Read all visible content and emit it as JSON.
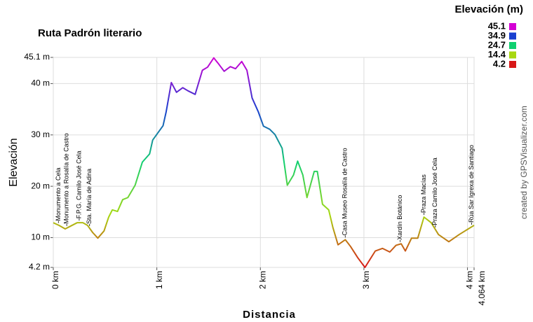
{
  "chart_data": {
    "type": "line",
    "title": "Ruta Padrón literario",
    "x_label": "Distancia",
    "y_label": "Elevación",
    "credit": "created by GPSVisualizer.com",
    "xlim": [
      0,
      4.064
    ],
    "ylim": [
      4.2,
      45.1
    ],
    "xticks": [
      {
        "value": 0,
        "label": "0 km"
      },
      {
        "value": 1,
        "label": "1 km"
      },
      {
        "value": 2,
        "label": "2 km"
      },
      {
        "value": 3,
        "label": "3 km"
      },
      {
        "value": 4,
        "label": "4 km"
      },
      {
        "value": 4.064,
        "label": "4.064 km"
      }
    ],
    "yticks": [
      {
        "value": 4.2,
        "label": "4.2 m"
      },
      {
        "value": 10,
        "label": "10 m"
      },
      {
        "value": 20,
        "label": "20 m"
      },
      {
        "value": 30,
        "label": "30 m"
      },
      {
        "value": 40,
        "label": "40 m"
      },
      {
        "value": 45.1,
        "label": "45.1 m"
      }
    ],
    "grid": true,
    "legend": {
      "title": "Elevación (m)",
      "position": "top-right",
      "entries": [
        {
          "value": 45.1,
          "color": "#d400d4"
        },
        {
          "value": 34.9,
          "color": "#1a3fd0"
        },
        {
          "value": 24.7,
          "color": "#10d070"
        },
        {
          "value": 14.4,
          "color": "#a8d810"
        },
        {
          "value": 4.2,
          "color": "#d81818"
        }
      ]
    },
    "x": [
      0,
      0.054,
      0.115,
      0.163,
      0.23,
      0.285,
      0.33,
      0.38,
      0.43,
      0.49,
      0.535,
      0.57,
      0.62,
      0.67,
      0.72,
      0.79,
      0.86,
      0.93,
      0.96,
      1.01,
      1.06,
      1.09,
      1.14,
      1.19,
      1.25,
      1.3,
      1.37,
      1.44,
      1.49,
      1.55,
      1.59,
      1.65,
      1.71,
      1.76,
      1.82,
      1.87,
      1.92,
      1.98,
      2.03,
      2.09,
      2.14,
      2.21,
      2.26,
      2.32,
      2.36,
      2.41,
      2.45,
      2.52,
      2.55,
      2.6,
      2.66,
      2.7,
      2.75,
      2.82,
      2.87,
      2.94,
      3.01,
      3.11,
      3.18,
      3.25,
      3.31,
      3.36,
      3.4,
      3.46,
      3.52,
      3.58,
      3.65,
      3.72,
      3.82,
      3.92,
      4.064
    ],
    "series": [
      {
        "name": "Elevación",
        "values": [
          12.9,
          12.4,
          11.7,
          12.2,
          12.9,
          12.9,
          12.4,
          11.0,
          9.9,
          11.3,
          14.0,
          15.4,
          15.1,
          17.4,
          17.8,
          20.2,
          24.7,
          26.3,
          29.0,
          30.4,
          31.8,
          34.5,
          40.2,
          38.3,
          39.2,
          38.6,
          37.9,
          42.6,
          43.2,
          45.0,
          44.0,
          42.4,
          43.3,
          42.9,
          44.3,
          42.6,
          37.2,
          34.5,
          31.7,
          31.1,
          30.1,
          27.4,
          20.2,
          22.2,
          24.9,
          22.2,
          17.8,
          22.9,
          22.9,
          16.5,
          15.4,
          12.0,
          8.6,
          9.6,
          8.3,
          6.1,
          4.2,
          7.4,
          7.9,
          7.2,
          8.5,
          8.8,
          7.4,
          9.9,
          9.9,
          14.0,
          12.9,
          10.6,
          9.2,
          10.6,
          12.4
        ]
      }
    ],
    "waypoints": [
      {
        "name": "Monumento a Cela",
        "x": 0.05
      },
      {
        "name": "Monumento a Rosalía de Castro",
        "x": 0.13
      },
      {
        "name": "F.P.G. Camilo José Cela",
        "x": 0.25
      },
      {
        "name": "Sta. María de Adina",
        "x": 0.35
      },
      {
        "name": "Casa Museo Rosalía de Castro",
        "x": 2.82
      },
      {
        "name": "Xardín Botánico",
        "x": 3.35
      },
      {
        "name": "Praza Macías",
        "x": 3.58
      },
      {
        "name": "Praza Camilo José Cela",
        "x": 3.69
      },
      {
        "name": "Rúa Sar Igrexa de Santiago",
        "x": 4.04
      }
    ]
  }
}
